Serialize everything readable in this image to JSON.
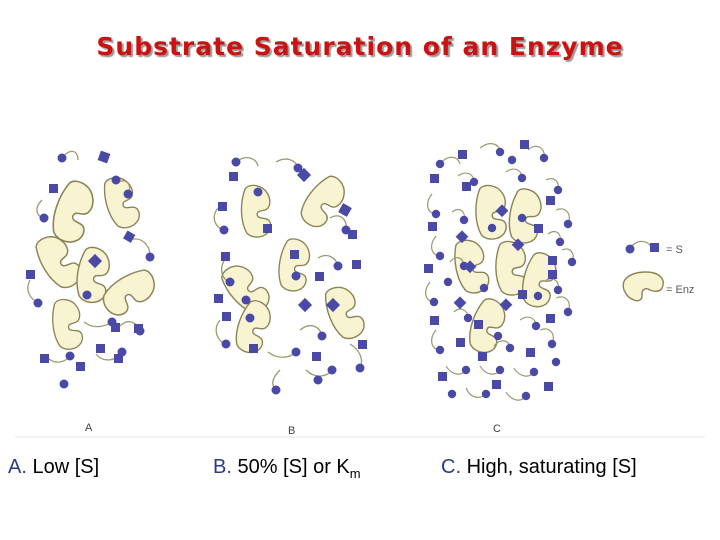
{
  "title": "Substrate Saturation of an Enzyme",
  "panels": [
    {
      "label": "A",
      "caption_letter": "A.",
      "caption_text": "Low [S]"
    },
    {
      "label": "B",
      "caption_letter": "B.",
      "caption_text": "50% [S] or K",
      "caption_sub": "m"
    },
    {
      "label": "C",
      "caption_letter": "C.",
      "caption_text": "High, saturating [S]"
    }
  ],
  "legend": {
    "substrate": "= S",
    "enzyme": "= Enz"
  },
  "colors": {
    "title": "#cc1111",
    "substrate": "#4a4aa6",
    "enzyme_fill": "#f8f3d0",
    "enzyme_stroke": "#8a8458",
    "caption_letter": "#2b3a8c"
  }
}
